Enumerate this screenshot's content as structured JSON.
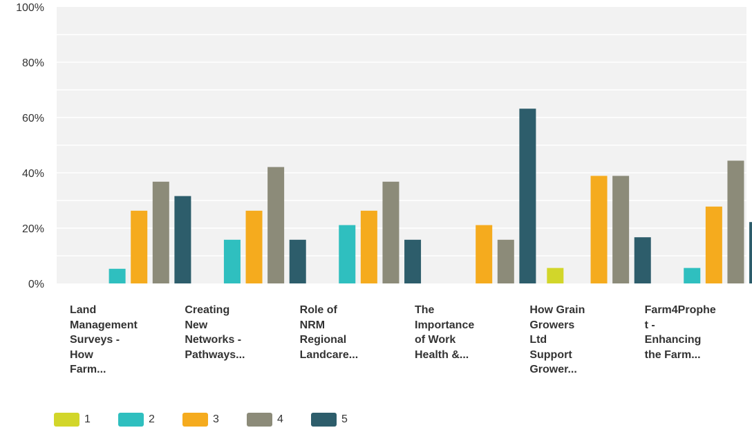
{
  "chart_data": {
    "type": "bar",
    "categories": [
      "Land\nManagement\nSurveys -\nHow\nFarm...",
      "Creating\nNew\nNetworks -\nPathways...",
      "Role of\nNRM\nRegional\nLandcare...",
      "The\nImportance\nof Work\nHealth &...",
      "How Grain\nGrowers\nLtd\nSupport\nGrower...",
      "Farm4Prophe\nt -\nEnhancing\nthe Farm..."
    ],
    "series": [
      {
        "name": "1",
        "color": "#d2d62a",
        "values": [
          0,
          0,
          0,
          0,
          5.6,
          0
        ]
      },
      {
        "name": "2",
        "color": "#2fbfbf",
        "values": [
          5.3,
          15.8,
          21.1,
          0,
          0,
          5.6
        ]
      },
      {
        "name": "3",
        "color": "#f5ab1e",
        "values": [
          26.3,
          26.3,
          26.3,
          21.1,
          38.9,
          27.8
        ]
      },
      {
        "name": "4",
        "color": "#8c8b79",
        "values": [
          36.8,
          42.1,
          36.8,
          15.8,
          38.9,
          44.4
        ]
      },
      {
        "name": "5",
        "color": "#2d5d6b",
        "values": [
          31.6,
          15.8,
          15.8,
          63.2,
          16.7,
          22.2
        ]
      }
    ],
    "yticks": [
      "0%",
      "20%",
      "40%",
      "60%",
      "80%",
      "100%"
    ],
    "ylim": [
      0,
      100
    ],
    "grid": true,
    "legend": "bottom-left"
  }
}
